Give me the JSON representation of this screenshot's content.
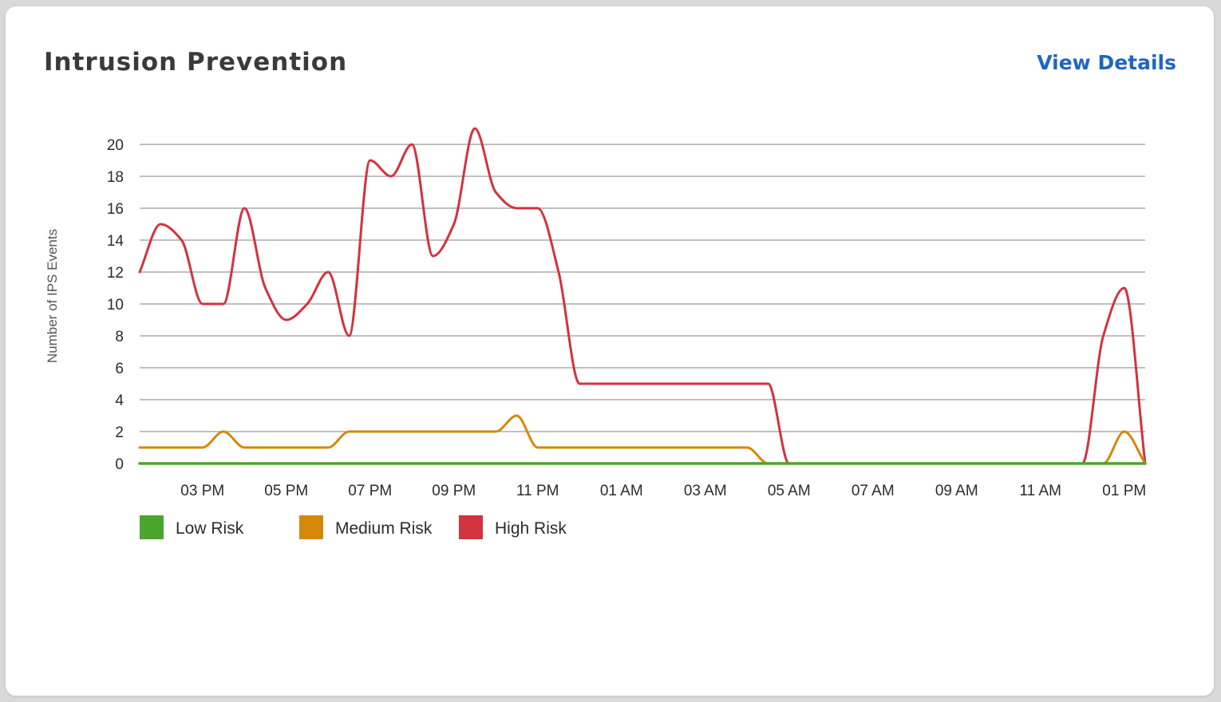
{
  "card": {
    "title": "Intrusion Prevention",
    "view_details_label": "View Details"
  },
  "chart_data": {
    "type": "line",
    "ylabel": "Number of IPS Events",
    "ylim": [
      0,
      20
    ],
    "y_ticks": [
      0,
      2,
      4,
      6,
      8,
      10,
      12,
      14,
      16,
      18,
      20
    ],
    "x_ticks": [
      "03 PM",
      "05 PM",
      "07 PM",
      "09 PM",
      "11 PM",
      "01 AM",
      "03 AM",
      "05 AM",
      "07 AM",
      "09 AM",
      "11 AM",
      "01 PM"
    ],
    "x": [
      "01:30 PM",
      "02:00 PM",
      "02:30 PM",
      "03:00 PM",
      "03:30 PM",
      "04:00 PM",
      "04:30 PM",
      "05:00 PM",
      "05:30 PM",
      "06:00 PM",
      "06:30 PM",
      "07:00 PM",
      "07:30 PM",
      "08:00 PM",
      "08:30 PM",
      "09:00 PM",
      "09:30 PM",
      "10:00 PM",
      "10:30 PM",
      "11:00 PM",
      "11:30 PM",
      "12:00 AM",
      "12:30 AM",
      "01:00 AM",
      "01:30 AM",
      "02:00 AM",
      "02:30 AM",
      "03:00 AM",
      "03:30 AM",
      "04:00 AM",
      "04:30 AM",
      "05:00 AM",
      "05:30 AM",
      "06:00 AM",
      "06:30 AM",
      "07:00 AM",
      "07:30 AM",
      "08:00 AM",
      "08:30 AM",
      "09:00 AM",
      "09:30 AM",
      "10:00 AM",
      "10:30 AM",
      "11:00 AM",
      "11:30 AM",
      "12:00 PM",
      "12:30 PM",
      "01:00 PM",
      "01:30 PM"
    ],
    "grid": true,
    "legend_position": "bottom-left",
    "series": [
      {
        "name": "Low Risk",
        "color": "#4aa52e",
        "values": [
          0,
          0,
          0,
          0,
          0,
          0,
          0,
          0,
          0,
          0,
          0,
          0,
          0,
          0,
          0,
          0,
          0,
          0,
          0,
          0,
          0,
          0,
          0,
          0,
          0,
          0,
          0,
          0,
          0,
          0,
          0,
          0,
          0,
          0,
          0,
          0,
          0,
          0,
          0,
          0,
          0,
          0,
          0,
          0,
          0,
          0,
          0,
          0,
          0
        ]
      },
      {
        "name": "Medium Risk",
        "color": "#d4880a",
        "values": [
          1,
          1,
          1,
          1,
          2,
          1,
          1,
          1,
          1,
          1,
          2,
          2,
          2,
          2,
          2,
          2,
          2,
          2,
          3,
          1,
          1,
          1,
          1,
          1,
          1,
          1,
          1,
          1,
          1,
          1,
          0,
          0,
          0,
          0,
          0,
          0,
          0,
          0,
          0,
          0,
          0,
          0,
          0,
          0,
          0,
          0,
          0,
          2,
          0
        ]
      },
      {
        "name": "High Risk",
        "color": "#d1333f",
        "values": [
          12,
          15,
          14,
          10,
          10,
          16,
          11,
          9,
          10,
          12,
          8,
          19,
          18,
          20,
          13,
          15,
          21,
          17,
          16,
          16,
          12,
          5,
          5,
          5,
          5,
          5,
          5,
          5,
          5,
          5,
          5,
          0,
          0,
          0,
          0,
          0,
          0,
          0,
          0,
          0,
          0,
          0,
          0,
          0,
          0,
          0,
          8,
          11,
          0
        ]
      }
    ]
  }
}
